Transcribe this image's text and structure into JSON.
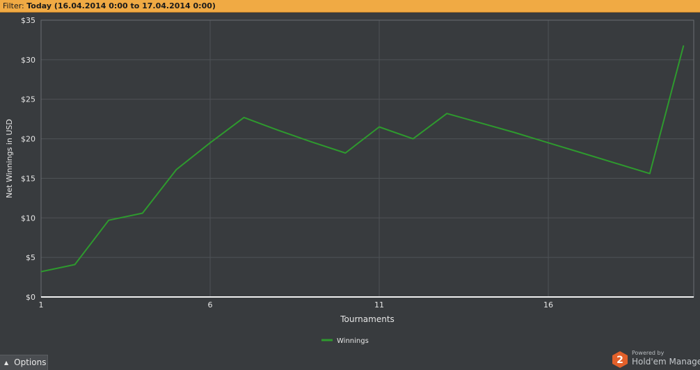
{
  "filter": {
    "label": "Filter:",
    "value": "Today (16.04.2014 0:00 to 17.04.2014 0:00)"
  },
  "footer": {
    "options_label": "Options",
    "powered_by": "Powered by",
    "brand_name": "Hold'em Manager",
    "brand_badge": "2"
  },
  "colors": {
    "filter_bar": "#f0aa44",
    "background": "#383b3e",
    "series_line": "#2e9a2e",
    "grid": "#4f5357",
    "axis_text": "#e6e6e6"
  },
  "chart_data": {
    "type": "line",
    "title": "",
    "xlabel": "Tournaments",
    "ylabel": "Net Winnings in USD",
    "xlim": [
      1,
      20.3
    ],
    "ylim": [
      0,
      35
    ],
    "x_ticks": [
      1,
      6,
      11,
      16
    ],
    "y_ticks": [
      0,
      5,
      10,
      15,
      20,
      25,
      30,
      35
    ],
    "y_tick_labels": [
      "$0",
      "$5",
      "$10",
      "$15",
      "$20",
      "$25",
      "$30",
      "$35"
    ],
    "grid": true,
    "legend_position": "bottom-center",
    "series": [
      {
        "name": "Winnings",
        "color": "#2e9a2e",
        "x": [
          1,
          2,
          3,
          4,
          5,
          6,
          7,
          8,
          9,
          10,
          11,
          12,
          13,
          14,
          15,
          16,
          17,
          18,
          19,
          20
        ],
        "values": [
          3.2,
          4.1,
          9.7,
          10.6,
          16.1,
          19.5,
          22.7,
          21.1,
          19.6,
          18.2,
          21.5,
          20.0,
          23.2,
          22.0,
          20.8,
          19.5,
          18.2,
          16.9,
          15.6,
          31.8
        ]
      }
    ]
  }
}
